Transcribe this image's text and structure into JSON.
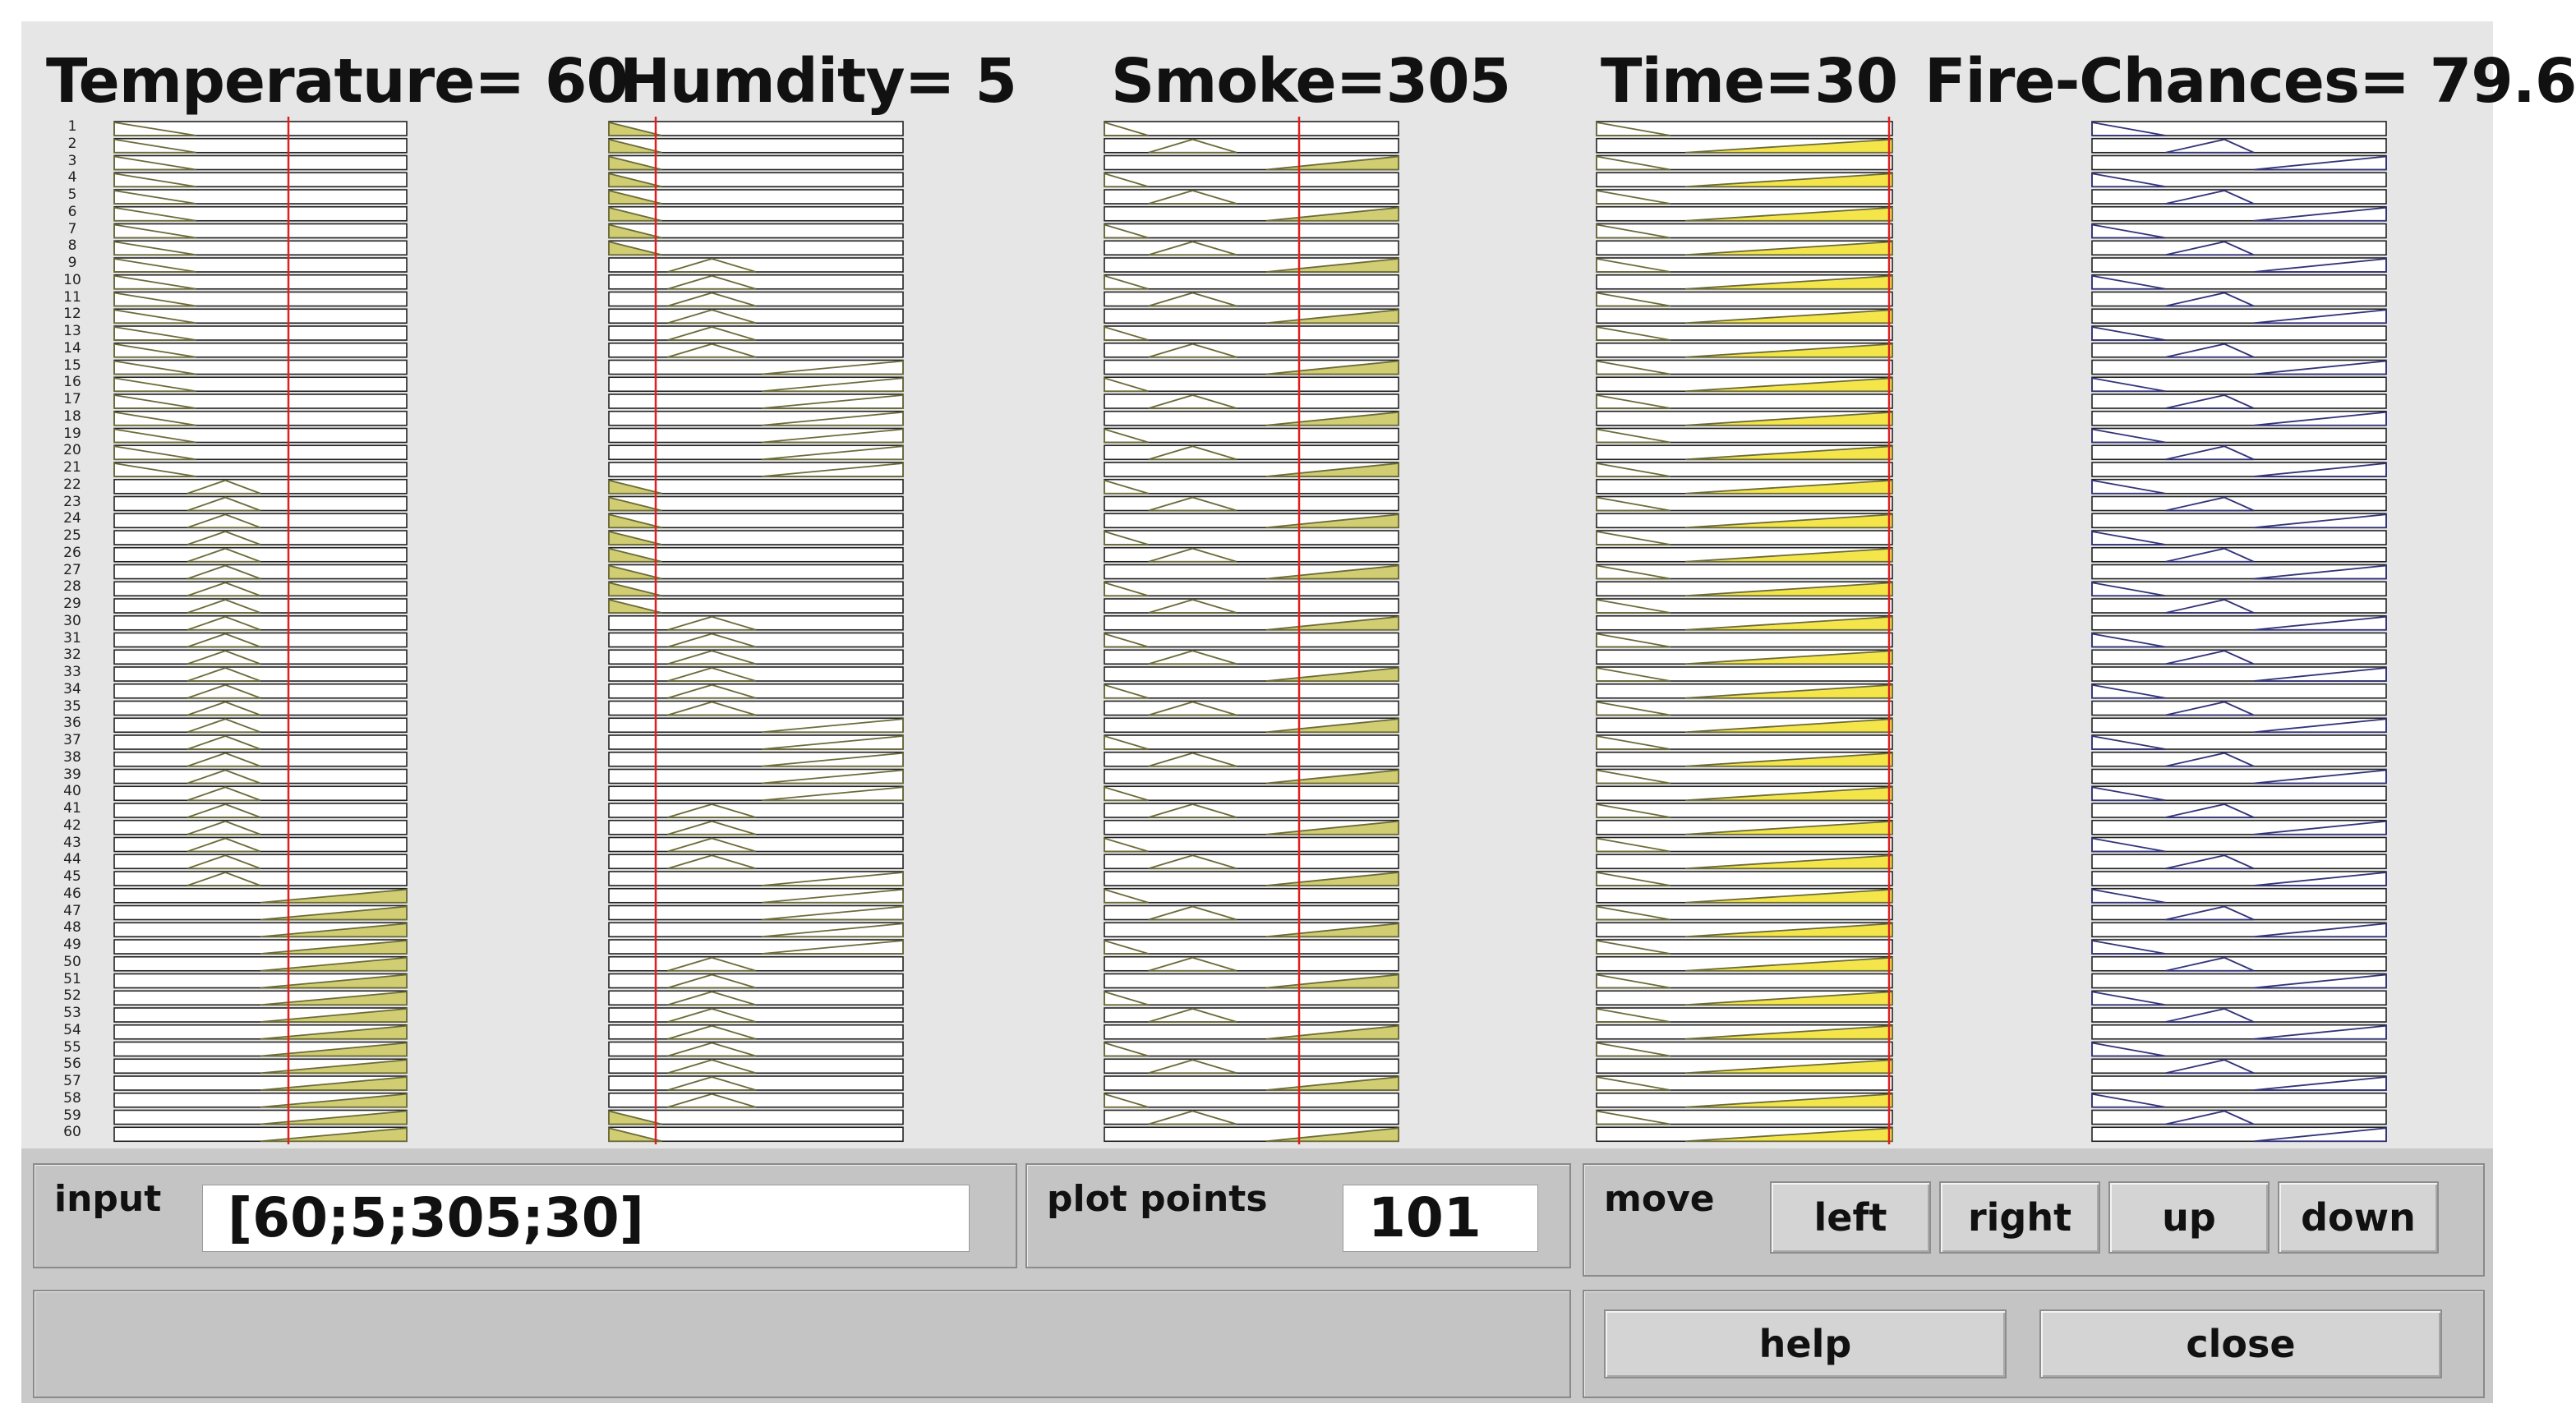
{
  "headers": {
    "temperature": {
      "label": "Temperature= ",
      "value": "60"
    },
    "humidity": {
      "label": "Humdity= ",
      "value": "5"
    },
    "smoke": {
      "label": "Smoke=",
      "value": "305"
    },
    "time": {
      "label": "Time=",
      "value": "30"
    },
    "fire_chances": {
      "label": "Fire-Chances= ",
      "value": "79.6"
    }
  },
  "row_numbers": [
    1,
    2,
    3,
    4,
    5,
    6,
    7,
    8,
    9,
    10,
    11,
    12,
    13,
    14,
    15,
    16,
    17,
    18,
    19,
    20,
    21,
    22,
    23,
    24,
    25,
    26,
    27,
    28,
    29,
    30,
    31,
    32,
    33,
    34,
    35,
    36,
    37,
    38,
    39,
    40,
    41,
    42,
    43,
    44,
    45,
    46,
    47,
    48,
    49,
    50,
    51,
    52,
    53,
    54,
    55,
    56,
    57,
    58,
    59,
    60
  ],
  "colors": {
    "marker_red": "#e02020",
    "membership_olive": "#6b6b3a",
    "fill_yellow": "#f2e22a",
    "fill_khaki": "#c8c45a",
    "output_navy": "#33337a"
  },
  "controls": {
    "input_label": "input",
    "input_value": "[60;5;305;30]",
    "plot_points_label": "plot points",
    "plot_points_value": "101",
    "move_label": "move",
    "left": "left",
    "right": "right",
    "up": "up",
    "down": "down",
    "help": "help",
    "close": "close",
    "status_text": ""
  }
}
